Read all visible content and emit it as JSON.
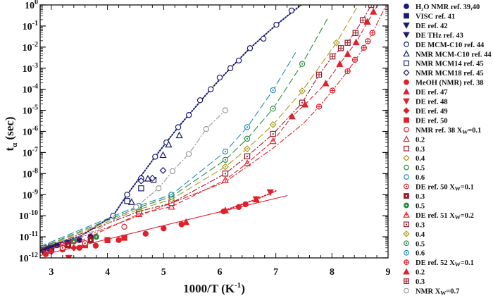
{
  "chart_data": {
    "type": "scatter",
    "xlabel": {
      "main": "1000/T (K",
      "sup": "-1",
      "end": ")"
    },
    "ylabel": {
      "main": "t",
      "sub": "α",
      "end": " (sec)"
    },
    "xlim": [
      2.8,
      9
    ],
    "ylim": [
      1e-12,
      1
    ],
    "y_scale": "log",
    "x_ticks": [
      "3",
      "4",
      "5",
      "6",
      "7",
      "8",
      "9"
    ],
    "y_ticks": [
      {
        "base": "10",
        "exp": "0"
      },
      {
        "base": "10",
        "exp": "-1"
      },
      {
        "base": "10",
        "exp": "-2"
      },
      {
        "base": "10",
        "exp": "-3"
      },
      {
        "base": "10",
        "exp": "-4"
      },
      {
        "base": "10",
        "exp": "-5"
      },
      {
        "base": "10",
        "exp": "-6"
      },
      {
        "base": "10",
        "exp": "-7"
      },
      {
        "base": "10",
        "exp": "-8"
      },
      {
        "base": "10",
        "exp": "-9"
      },
      {
        "base": "10",
        "exp": "-10"
      },
      {
        "base": "10",
        "exp": "-11"
      },
      {
        "base": "10",
        "exp": "-12"
      }
    ],
    "grid": false,
    "legend_position": "right",
    "series": [
      {
        "name": "H₂O NMR ref. 39,40",
        "color": "#1b1b72",
        "marker": "circle",
        "fill": "filled",
        "points": [
          [
            2.9,
            3e-12
          ],
          [
            3.1,
            4e-12
          ],
          [
            3.3,
            5e-12
          ],
          [
            3.5,
            7e-12
          ],
          [
            3.7,
            1e-11
          ]
        ]
      },
      {
        "name": "VISC ref. 41",
        "color": "#1b1b72",
        "marker": "square",
        "fill": "filled",
        "points": [
          [
            2.85,
            2.5e-12
          ],
          [
            3.0,
            3e-12
          ],
          [
            3.2,
            4e-12
          ]
        ]
      },
      {
        "name": "DE ref. 42",
        "color": "#1b1b72",
        "marker": "tri-down",
        "fill": "filled",
        "points": [
          [
            3.0,
            3.5e-12
          ],
          [
            3.3,
            5e-12
          ]
        ]
      },
      {
        "name": "DE THz ref. 43",
        "color": "#1b1b72",
        "marker": "tri-down",
        "fill": "filled",
        "points": [
          [
            2.85,
            2e-12
          ],
          [
            2.95,
            2.5e-12
          ]
        ]
      },
      {
        "name": "DE MCM-C10  ref. 44",
        "color": "#1b1b72",
        "marker": "circle",
        "fill": "open",
        "line": "dotted",
        "points": [
          [
            4.1,
            1e-10
          ],
          [
            4.35,
            1e-09
          ],
          [
            4.6,
            6e-09
          ],
          [
            4.85,
            6.3e-08
          ],
          [
            5.05,
            3e-07
          ],
          [
            5.26,
            1.6e-06
          ],
          [
            5.45,
            6e-06
          ],
          [
            5.65,
            3e-05
          ],
          [
            5.84,
            0.0001
          ],
          [
            6.0,
            0.00036
          ],
          [
            6.19,
            0.001
          ],
          [
            6.34,
            0.0023
          ],
          [
            6.54,
            0.0089
          ],
          [
            6.78,
            0.025
          ],
          [
            7.01,
            0.115
          ],
          [
            7.28,
            0.54
          ]
        ],
        "fit": [
          [
            2.8,
            3e-12
          ],
          [
            3.5,
            1e-11
          ],
          [
            4.1,
            1e-10
          ],
          [
            4.35,
            1e-09
          ],
          [
            4.85,
            6.3e-08
          ],
          [
            5.26,
            1.6e-06
          ],
          [
            5.84,
            0.0001
          ],
          [
            6.19,
            0.001
          ],
          [
            6.54,
            0.0089
          ],
          [
            7.01,
            0.115
          ],
          [
            7.45,
            1
          ]
        ]
      },
      {
        "name": "NMR MCM-C10 ref. 44",
        "color": "#1b1b72",
        "marker": "tri-up",
        "fill": "open",
        "points": [
          [
            4.43,
            4.5e-10
          ],
          [
            4.72,
            5.8e-09
          ],
          [
            4.99,
            7.6e-08
          ],
          [
            5.09,
            2.4e-07
          ],
          [
            5.28,
            6.6e-07
          ]
        ]
      },
      {
        "name": "NMR MCM14 ref. 45",
        "color": "#1b1b72",
        "marker": "square",
        "fill": "open",
        "points": [
          [
            4.35,
            5e-10
          ],
          [
            4.6,
            2e-09
          ],
          [
            4.82,
            5e-09
          ]
        ]
      },
      {
        "name": "NMR MCM18 ref. 45",
        "color": "#1b1b72",
        "marker": "diamond",
        "fill": "open",
        "points": [
          [
            4.6,
            4.5e-09
          ],
          [
            4.8,
            6e-09
          ],
          [
            4.99,
            1.4e-08
          ]
        ]
      },
      {
        "name": "MeOH (NMR)  ref. 38",
        "color": "#e0202a",
        "marker": "circle",
        "fill": "filled",
        "line": "solid",
        "points": [
          [
            2.9,
            1.5e-12
          ],
          [
            3.2,
            2.5e-12
          ],
          [
            3.5,
            3e-12
          ],
          [
            3.79,
            3.8e-12
          ],
          [
            4.2,
            7e-12
          ],
          [
            4.68,
            1.4e-11
          ],
          [
            5.0,
            2.5e-11
          ],
          [
            5.32,
            3.9e-11
          ],
          [
            6.07,
            1.6e-10
          ],
          [
            6.34,
            2.6e-10
          ],
          [
            6.46,
            3.5e-10
          ]
        ],
        "fit": [
          [
            2.8,
            1.3e-12
          ],
          [
            7.2,
            9e-10
          ]
        ]
      },
      {
        "name": "DE ref. 47",
        "color": "#e0202a",
        "marker": "tri-up",
        "fill": "filled",
        "points": [
          [
            5.4,
            5e-11
          ],
          [
            6.1,
            1.8e-10
          ],
          [
            6.65,
            6e-10
          ]
        ]
      },
      {
        "name": "DE ref. 48",
        "color": "#e0202a",
        "marker": "tri-down",
        "fill": "filled",
        "line": "dotted",
        "points": [
          [
            3.31,
            1e-12
          ],
          [
            6.65,
            6e-10
          ],
          [
            6.9,
            1.3e-09
          ]
        ],
        "fit": [
          [
            6.0,
            1.5e-10
          ],
          [
            6.65,
            6e-10
          ],
          [
            7.0,
            1.5e-09
          ]
        ]
      },
      {
        "name": "DE ref. 49",
        "color": "#e0202a",
        "marker": "diamond",
        "fill": "filled",
        "points": [
          [
            3.0,
            2e-12
          ],
          [
            3.4,
            3e-12
          ]
        ]
      },
      {
        "name": "DE ref. 50",
        "color": "#e0202a",
        "marker": "square",
        "fill": "filled",
        "points": [
          [
            3.6,
            4e-12
          ],
          [
            4.0,
            7e-12
          ],
          [
            4.3,
            9e-12
          ]
        ]
      },
      {
        "name": "NMR  ref. 38 X",
        "sub": "W",
        "after": "=0.1",
        "color": "#e0202a",
        "marker": "circle",
        "fill": "open",
        "points": [
          [
            3.2,
            4e-12
          ],
          [
            3.8,
            1e-11
          ],
          [
            4.3,
            3e-11
          ]
        ]
      },
      {
        "name": "0.2",
        "color": "#e0202a",
        "marker": "tri-up",
        "fill": "open",
        "points": [
          [
            4.56,
            1.2e-10
          ],
          [
            5.14,
            2.7e-10
          ]
        ]
      },
      {
        "name": "0.3",
        "color": "#9a1a2a",
        "marker": "square",
        "fill": "open",
        "points": [
          [
            4.56,
            1.6e-10
          ],
          [
            5.14,
            4e-10
          ]
        ]
      },
      {
        "name": "0.4",
        "color": "#a89a18",
        "marker": "diamond",
        "fill": "open",
        "points": [
          [
            4.56,
            2e-10
          ],
          [
            5.14,
            6e-10
          ]
        ]
      },
      {
        "name": "0.5",
        "color": "#2a8a40",
        "marker": "circle",
        "fill": "open",
        "points": [
          [
            4.56,
            2.5e-10
          ],
          [
            5.14,
            8e-10
          ]
        ]
      },
      {
        "name": "0.6",
        "color": "#1a8cb8",
        "marker": "circle",
        "fill": "open",
        "points": [
          [
            4.56,
            3e-10
          ],
          [
            5.14,
            1e-09
          ]
        ]
      },
      {
        "name": "DE ref. 50  X",
        "sub": "W",
        "after": "=0.1",
        "color": "#e0202a",
        "marker": "circle",
        "fill": "dot",
        "points": [
          [
            3.2,
            3e-12
          ],
          [
            3.6,
            5e-12
          ]
        ]
      },
      {
        "name": "0.3",
        "color": "#9a1a2a",
        "marker": "square",
        "fill": "filled-dot",
        "points": [
          [
            3.3,
            4e-12
          ],
          [
            3.7,
            7e-12
          ]
        ]
      },
      {
        "name": "0.5",
        "color": "#2a8a40",
        "marker": "circle",
        "fill": "filled-dot",
        "points": [
          [
            3.4,
            6e-12
          ],
          [
            3.8,
            1e-11
          ]
        ]
      },
      {
        "name": "DE ref. 51 X",
        "sub": "W",
        "after": "=0.2",
        "color": "#e0202a",
        "marker": "tri-up",
        "fill": "dot",
        "line": "dash",
        "points": [
          [
            6.1,
            5e-09
          ],
          [
            6.49,
            3.1e-08
          ],
          [
            6.95,
            3.5e-07
          ]
        ],
        "fit": [
          [
            2.8,
            2e-12
          ],
          [
            3.5,
            6e-12
          ],
          [
            4.56,
            1.2e-10
          ],
          [
            5.14,
            2.7e-10
          ],
          [
            6.1,
            5e-09
          ],
          [
            6.49,
            3.1e-08
          ],
          [
            6.95,
            3.5e-07
          ],
          [
            7.29,
            5.2e-06
          ],
          [
            7.52,
            1.9e-05
          ],
          [
            7.89,
            0.00019
          ],
          [
            8.14,
            0.0016
          ],
          [
            8.43,
            0.017
          ],
          [
            8.74,
            0.48
          ],
          [
            8.82,
            1
          ]
        ]
      },
      {
        "name": "0.3",
        "color": "#9a1a2a",
        "marker": "square",
        "fill": "dot",
        "line": "dashdot",
        "points": [
          [
            6.1,
            1e-08
          ],
          [
            6.49,
            6.6e-08
          ],
          [
            6.95,
            7.6e-07
          ],
          [
            7.47,
            2.3e-05
          ]
        ],
        "fit": [
          [
            2.8,
            2.5e-12
          ],
          [
            4.56,
            1.6e-10
          ],
          [
            5.14,
            4e-10
          ],
          [
            6.1,
            1e-08
          ],
          [
            6.49,
            6.6e-08
          ],
          [
            6.95,
            7.6e-07
          ],
          [
            7.47,
            2.3e-05
          ],
          [
            7.77,
            0.00049
          ],
          [
            8.01,
            0.0036
          ],
          [
            8.28,
            0.016
          ],
          [
            8.55,
            0.19
          ],
          [
            8.7,
            1
          ]
        ]
      },
      {
        "name": "0.4",
        "color": "#a89a18",
        "marker": "diamond",
        "fill": "dot",
        "line": "longdash",
        "points": [
          [
            6.1,
            2.1e-08
          ],
          [
            6.49,
            1.5e-07
          ],
          [
            6.95,
            2.1e-06
          ],
          [
            7.47,
            8.3e-05
          ],
          [
            8.08,
            0.016
          ]
        ],
        "fit": [
          [
            2.8,
            2.8e-12
          ],
          [
            4.56,
            2e-10
          ],
          [
            5.14,
            6e-10
          ],
          [
            6.1,
            2.1e-08
          ],
          [
            6.49,
            1.5e-07
          ],
          [
            6.95,
            2.1e-06
          ],
          [
            7.47,
            8.3e-05
          ],
          [
            8.08,
            0.016
          ],
          [
            8.47,
            1
          ]
        ]
      },
      {
        "name": "0.5",
        "color": "#2a8a40",
        "marker": "circle",
        "fill": "dot",
        "line": "longdash",
        "points": [
          [
            6.1,
            4.5e-08
          ],
          [
            6.49,
            4.5e-07
          ],
          [
            6.95,
            1.2e-05
          ],
          [
            7.47,
            0.0016
          ]
        ],
        "fit": [
          [
            2.8,
            3e-12
          ],
          [
            4.56,
            2.5e-10
          ],
          [
            5.14,
            8e-10
          ],
          [
            6.1,
            4.5e-08
          ],
          [
            6.49,
            4.5e-07
          ],
          [
            6.95,
            1.2e-05
          ],
          [
            7.47,
            0.0016
          ],
          [
            7.93,
            0.25
          ]
        ]
      },
      {
        "name": "0.6",
        "color": "#1a8cb8",
        "marker": "circle",
        "fill": "dot",
        "line": "longdash",
        "points": [
          [
            6.1,
            1.1e-07
          ],
          [
            6.49,
            1.6e-06
          ],
          [
            6.95,
            9e-05
          ]
        ],
        "fit": [
          [
            2.8,
            3.5e-12
          ],
          [
            4.56,
            3e-10
          ],
          [
            5.14,
            1e-09
          ],
          [
            6.1,
            1.1e-07
          ],
          [
            6.49,
            1.6e-06
          ],
          [
            6.95,
            9e-05
          ],
          [
            7.35,
            0.0054
          ]
        ]
      },
      {
        "name": "DE ref. 52  X",
        "sub": "W",
        "after": "=0.1",
        "color": "#e0202a",
        "marker": "circle",
        "fill": "cross",
        "line": "dashdot",
        "points": [
          [
            7.77,
            1.5e-05
          ],
          [
            8.01,
            8.7e-05
          ],
          [
            8.28,
            0.00072
          ],
          [
            8.41,
            0.0025
          ],
          [
            8.57,
            0.0093
          ],
          [
            8.64,
            0.019
          ],
          [
            8.72,
            0.047
          ]
        ],
        "fit": [
          [
            2.8,
            1.8e-12
          ],
          [
            4.56,
            1e-10
          ],
          [
            6.1,
            4e-09
          ],
          [
            6.95,
            1.6e-07
          ],
          [
            7.5,
            2.5e-06
          ],
          [
            7.77,
            1.5e-05
          ],
          [
            8.01,
            8.7e-05
          ],
          [
            8.28,
            0.00072
          ],
          [
            8.57,
            0.0093
          ],
          [
            8.72,
            0.047
          ],
          [
            8.95,
            0.8
          ]
        ]
      },
      {
        "name": "0.2",
        "color": "#e0202a",
        "marker": "tri-up",
        "fill": "filled",
        "points": [
          [
            7.29,
            5.2e-06
          ],
          [
            7.52,
            1.9e-05
          ],
          [
            7.89,
            0.00019
          ],
          [
            8.14,
            0.0016
          ],
          [
            8.28,
            0.0047
          ],
          [
            8.43,
            0.017
          ],
          [
            8.63,
            0.16
          ],
          [
            8.74,
            0.48
          ]
        ]
      },
      {
        "name": "0.3",
        "color": "#9a1a2a",
        "marker": "square",
        "fill": "cross",
        "points": [
          [
            7.77,
            0.00049
          ],
          [
            8.01,
            0.0036
          ],
          [
            8.16,
            0.0089
          ],
          [
            8.28,
            0.016
          ],
          [
            8.42,
            0.047
          ],
          [
            8.55,
            0.19
          ],
          [
            8.7,
            1
          ]
        ]
      },
      {
        "name": "NMR X",
        "sub": "W",
        "after": "=0.7",
        "color": "#999999",
        "marker": "circle",
        "fill": "open",
        "line": "dashdot",
        "points": [
          [
            4.51,
            2.6e-10
          ],
          [
            4.91,
            2e-09
          ],
          [
            5.16,
            1.3e-08
          ],
          [
            5.45,
            8.5e-08
          ],
          [
            5.76,
            1.3e-06
          ],
          [
            6.1,
            1e-05
          ]
        ],
        "fit": [
          [
            2.8,
            3e-12
          ],
          [
            3.8,
            2e-11
          ],
          [
            4.51,
            2.6e-10
          ],
          [
            4.91,
            2e-09
          ],
          [
            5.16,
            1.3e-08
          ],
          [
            5.45,
            8.5e-08
          ],
          [
            5.76,
            1.3e-06
          ],
          [
            6.1,
            1e-05
          ]
        ]
      }
    ]
  }
}
